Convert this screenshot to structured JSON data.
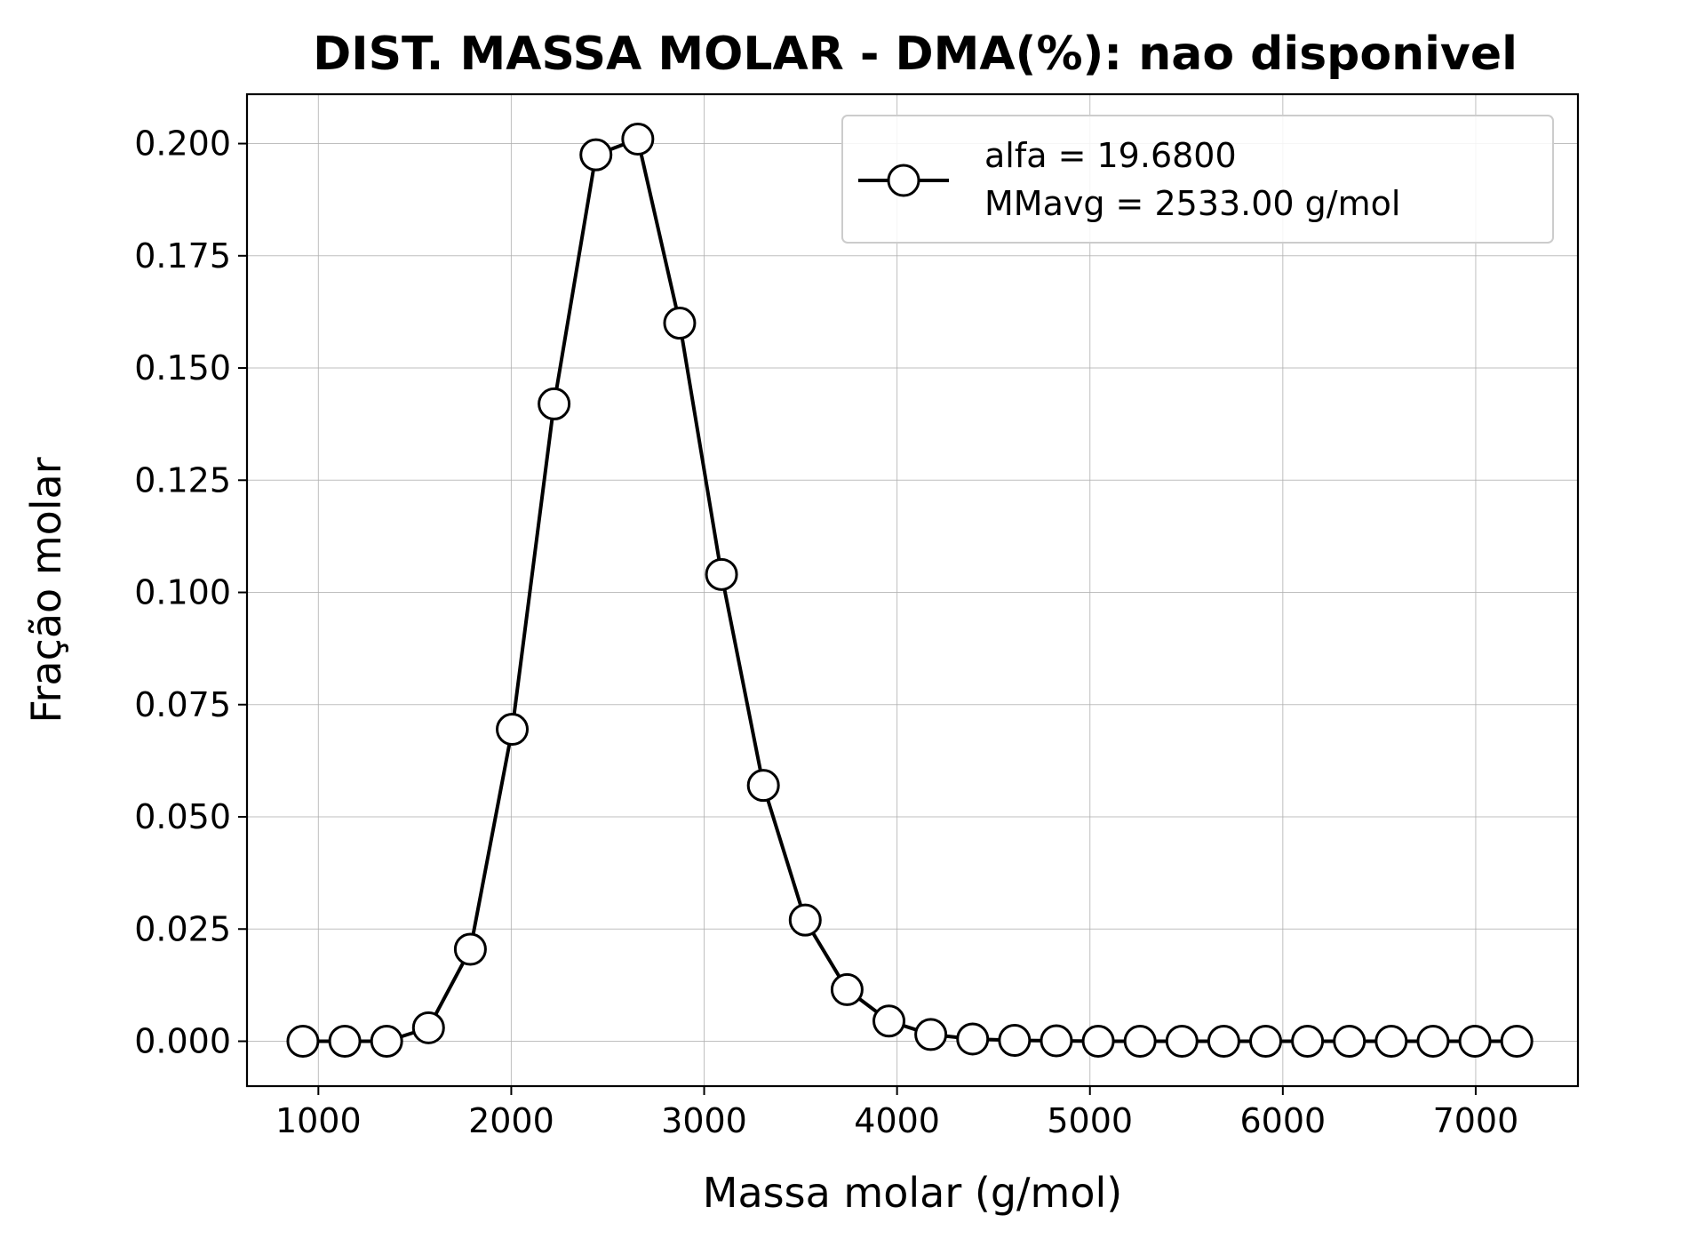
{
  "chart_data": {
    "type": "line",
    "title": "DIST. MASSA MOLAR - DMA(%): nao disponivel",
    "xlabel": "Massa molar (g/mol)",
    "ylabel": "Fração molar",
    "xlim": [
      630,
      7530
    ],
    "ylim": [
      -0.01,
      0.211
    ],
    "xticks": [
      1000,
      2000,
      3000,
      4000,
      5000,
      6000,
      7000
    ],
    "xtick_labels": [
      "1000",
      "2000",
      "3000",
      "4000",
      "5000",
      "6000",
      "7000"
    ],
    "yticks": [
      0.0,
      0.025,
      0.05,
      0.075,
      0.1,
      0.125,
      0.15,
      0.175,
      0.2
    ],
    "ytick_labels": [
      "0.000",
      "0.025",
      "0.050",
      "0.075",
      "0.100",
      "0.125",
      "0.150",
      "0.175",
      "0.200"
    ],
    "grid": true,
    "legend_position": "top-right",
    "series": [
      {
        "name": "alfa = 19.6800\nMMavg = 2533.00 g/mol",
        "legend_lines": [
          "alfa = 19.6800",
          "MMavg = 2533.00 g/mol"
        ],
        "color": "#000000",
        "marker": "circle-open",
        "x": [
          920,
          1137,
          1354,
          1571,
          1788,
          2005,
          2222,
          2439,
          2656,
          2873,
          3090,
          3307,
          3524,
          3741,
          3958,
          4175,
          4392,
          4609,
          4826,
          5043,
          5260,
          5477,
          5694,
          5911,
          6128,
          6345,
          6562,
          6779,
          6996,
          7213
        ],
        "y": [
          0.0,
          0.0,
          0.0,
          0.003,
          0.0205,
          0.0695,
          0.142,
          0.1975,
          0.201,
          0.16,
          0.104,
          0.057,
          0.027,
          0.0115,
          0.0045,
          0.0015,
          0.0005,
          0.0002,
          0.0001,
          0.0,
          0.0,
          0.0,
          0.0,
          0.0,
          0.0,
          0.0,
          0.0,
          0.0,
          0.0,
          0.0
        ]
      }
    ]
  }
}
